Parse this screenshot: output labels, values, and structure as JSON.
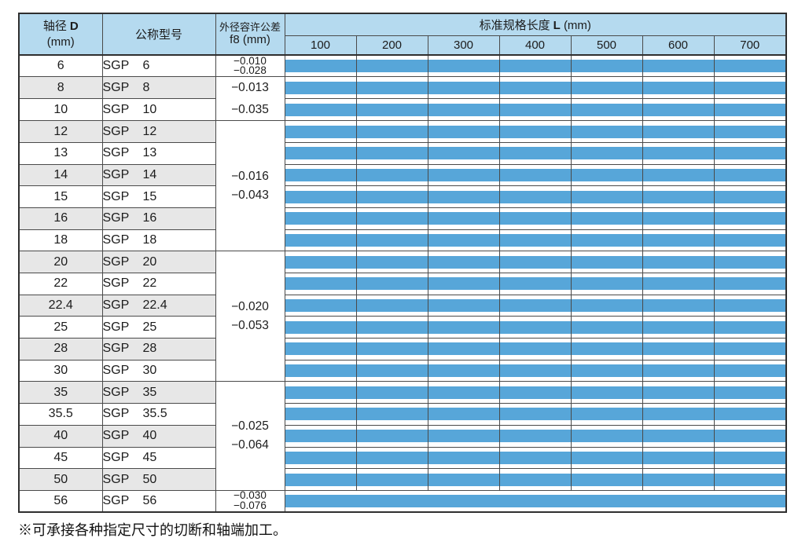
{
  "page": {
    "footnote": "※可承接各种指定尺寸的切断和轴端加工。"
  },
  "colors": {
    "header_bg": "#b5daef",
    "row_stripe": "#e7e7e7",
    "bar_blue": "#57a6d9",
    "border_inner": "#4a4a4a",
    "border_outer": "#2f2f2f"
  },
  "table": {
    "header": {
      "diameter": {
        "zh": "轴径",
        "sym": "D",
        "unit": "(mm)"
      },
      "model": {
        "zh": "公称型号"
      },
      "tolerance": {
        "zh": "外径容许公差",
        "sub": "f8 (mm)"
      },
      "length": {
        "zh": "标准规格长度",
        "sym": "L",
        "unit": "(mm)"
      },
      "length_ticks": [
        "100",
        "200",
        "300",
        "400",
        "500",
        "600",
        "700"
      ]
    },
    "model_prefix": "SGP",
    "rows": [
      {
        "d": "6",
        "size": "6",
        "tol": {
          "lines": [
            "−0.010",
            "−0.028"
          ],
          "rowspan": 1,
          "compact": true
        },
        "bar": true
      },
      {
        "d": "8",
        "size": "8",
        "tol": {
          "lines": [
            "−0.013",
            "−0.035"
          ],
          "rowspan": 2
        },
        "bar": true
      },
      {
        "d": "10",
        "size": "10",
        "bar": true
      },
      {
        "d": "12",
        "size": "12",
        "tol": {
          "lines": [
            "−0.016",
            "−0.043"
          ],
          "rowspan": 6
        },
        "bar": true
      },
      {
        "d": "13",
        "size": "13",
        "bar": true
      },
      {
        "d": "14",
        "size": "14",
        "bar": true
      },
      {
        "d": "15",
        "size": "15",
        "bar": true
      },
      {
        "d": "16",
        "size": "16",
        "bar": true
      },
      {
        "d": "18",
        "size": "18",
        "bar": true
      },
      {
        "d": "20",
        "size": "20",
        "tol": {
          "lines": [
            "−0.020",
            "−0.053"
          ],
          "rowspan": 6
        },
        "bar": true
      },
      {
        "d": "22",
        "size": "22",
        "bar": true
      },
      {
        "d": "22.4",
        "size": "22.4",
        "bar": true
      },
      {
        "d": "25",
        "size": "25",
        "bar": true
      },
      {
        "d": "28",
        "size": "28",
        "bar": true
      },
      {
        "d": "30",
        "size": "30",
        "bar": true
      },
      {
        "d": "35",
        "size": "35",
        "tol": {
          "lines": [
            "−0.025",
            "−0.064"
          ],
          "rowspan": 5
        },
        "bar": true
      },
      {
        "d": "35.5",
        "size": "35.5",
        "bar": true
      },
      {
        "d": "40",
        "size": "40",
        "bar": true
      },
      {
        "d": "45",
        "size": "45",
        "bar": true
      },
      {
        "d": "50",
        "size": "50",
        "bar": true
      },
      {
        "d": "56",
        "size": "56",
        "tol": {
          "lines": [
            "−0.030",
            "−0.076"
          ],
          "rowspan": 1,
          "compact": true
        },
        "bar": true,
        "continuous_bar": true
      }
    ]
  }
}
